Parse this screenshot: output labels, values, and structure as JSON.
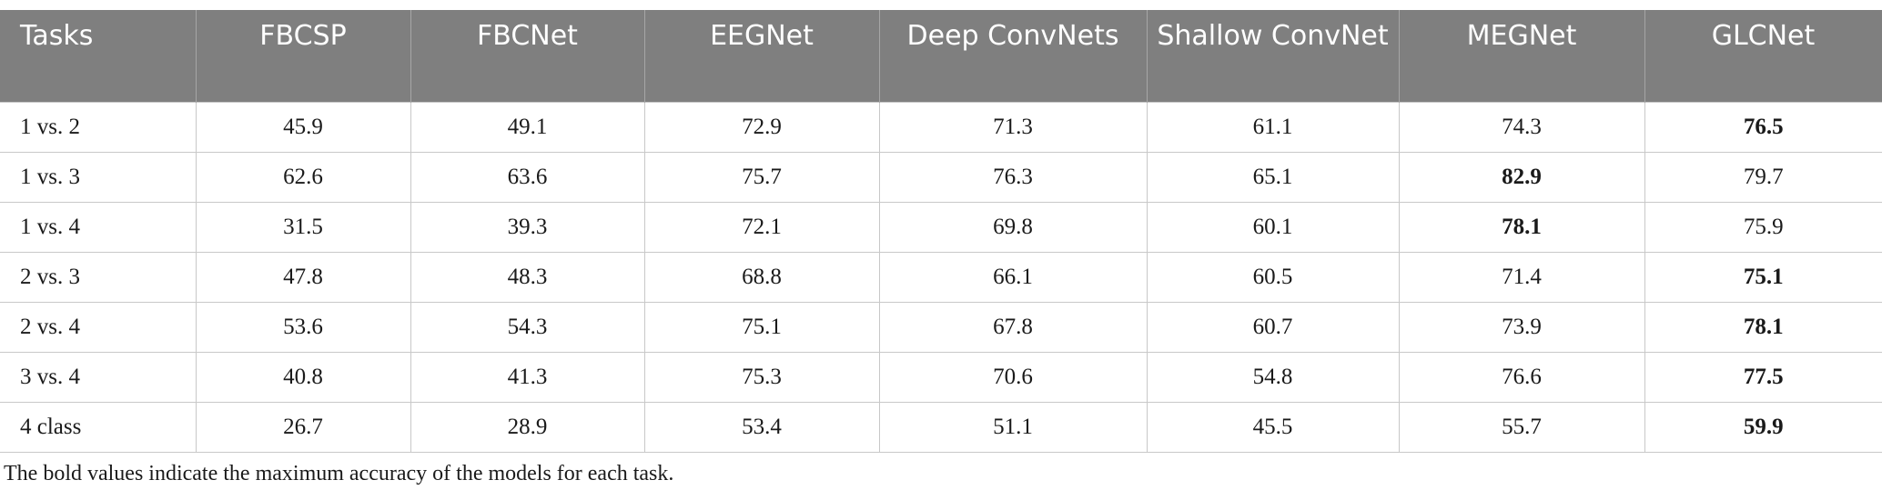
{
  "table": {
    "header": [
      "Tasks",
      "FBCSP",
      "FBCNet",
      "EEGNet",
      "Deep ConvNets",
      "Shallow ConvNet",
      "MEGNet",
      "GLCNet"
    ],
    "rows": [
      [
        "1 vs. 2",
        45.9,
        49.1,
        72.9,
        71.3,
        61.1,
        74.3,
        76.5
      ],
      [
        "1 vs. 3",
        62.6,
        63.6,
        75.7,
        76.3,
        65.1,
        82.9,
        79.7
      ],
      [
        "1 vs. 4",
        31.5,
        39.3,
        72.1,
        69.8,
        60.1,
        78.1,
        75.9
      ],
      [
        "2 vs. 3",
        47.8,
        48.3,
        68.8,
        66.1,
        60.5,
        71.4,
        75.1
      ],
      [
        "2 vs. 4",
        53.6,
        54.3,
        75.1,
        67.8,
        60.7,
        73.9,
        78.1
      ],
      [
        "3 vs. 4",
        40.8,
        41.3,
        75.3,
        70.6,
        54.8,
        76.6,
        77.5
      ],
      [
        "4 class",
        26.7,
        28.9,
        53.4,
        51.1,
        45.5,
        55.7,
        59.9
      ]
    ],
    "bold_column": [
      7,
      6,
      6,
      7,
      7,
      7,
      7
    ]
  },
  "footnote": "The bold values indicate the maximum accuracy of the models for each task."
}
